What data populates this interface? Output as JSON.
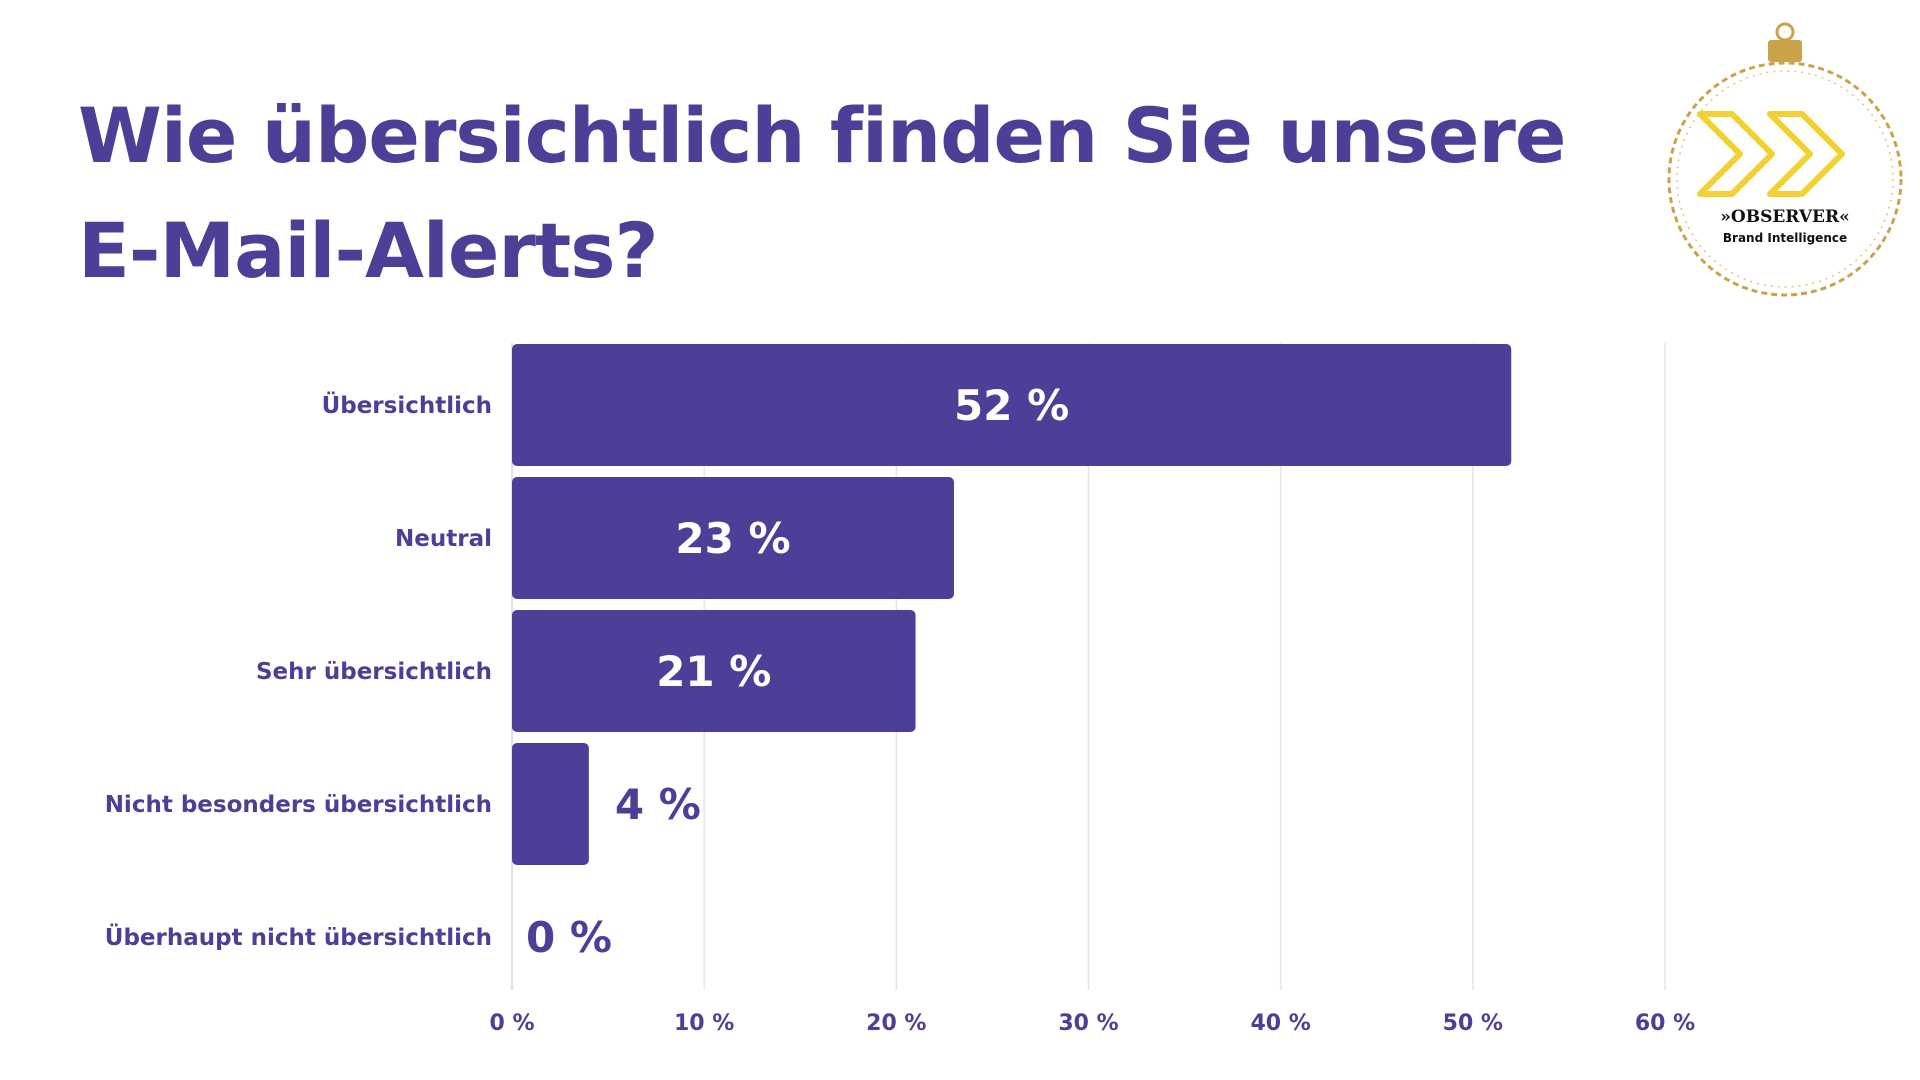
{
  "title": "Wie übersichtlich finden Sie unsere E-Mail-Alerts?",
  "logo": {
    "brand": "»OBSERVER«",
    "tagline": "Brand Intelligence",
    "icon": "double-chevron-icon"
  },
  "colors": {
    "primary": "#4b3f97",
    "grid": "#e6e3ef",
    "logo_gold": "#c9a24a",
    "logo_yellow": "#f2d233"
  },
  "chart_data": {
    "type": "bar",
    "orientation": "horizontal",
    "categories": [
      "Übersichtlich",
      "Neutral",
      "Sehr übersichtlich",
      "Nicht besonders übersichtlich",
      "Überhaupt nicht übersichtlich"
    ],
    "values": [
      52,
      23,
      21,
      4,
      0
    ],
    "value_labels": [
      "52 %",
      "23 %",
      "21 %",
      "4 %",
      "0 %"
    ],
    "xlim": [
      0,
      60
    ],
    "xticks": [
      0,
      10,
      20,
      30,
      40,
      50,
      60
    ],
    "xtick_labels": [
      "0 %",
      "10 %",
      "20 %",
      "30 %",
      "40 %",
      "50 %",
      "60 %"
    ],
    "grid": true,
    "legend": false
  }
}
